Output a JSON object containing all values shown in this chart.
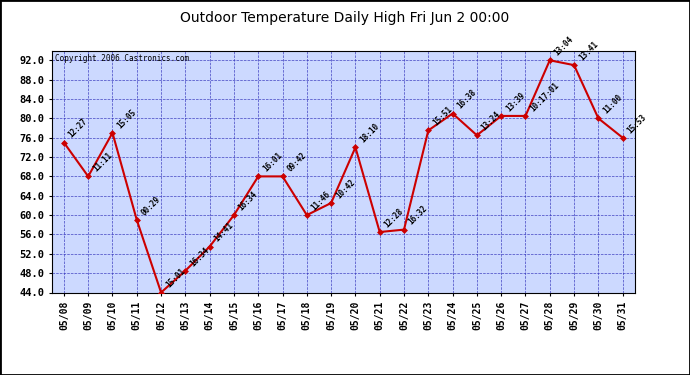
{
  "title": "Outdoor Temperature Daily High Fri Jun 2 00:00",
  "copyright": "Copyright 2006 Castronics.com",
  "dates": [
    "05/08",
    "05/09",
    "05/10",
    "05/11",
    "05/12",
    "05/13",
    "05/14",
    "05/15",
    "05/16",
    "05/17",
    "05/18",
    "05/19",
    "05/20",
    "05/21",
    "05/22",
    "05/23",
    "05/24",
    "05/25",
    "05/26",
    "05/27",
    "05/28",
    "05/29",
    "05/30",
    "05/31"
  ],
  "values": [
    75.0,
    68.0,
    77.0,
    59.0,
    44.0,
    48.5,
    53.5,
    60.0,
    68.0,
    68.0,
    60.0,
    62.5,
    74.0,
    56.5,
    57.0,
    77.5,
    81.0,
    76.5,
    80.5,
    80.5,
    92.0,
    91.0,
    80.0,
    76.0
  ],
  "point_labels": [
    "12:27",
    "11:11",
    "15:05",
    "00:29",
    "15:01",
    "16:34",
    "14:41",
    "16:34",
    "16:01",
    "09:42",
    "11:46",
    "10:42",
    "18:10",
    "12:28",
    "16:32",
    "15:51",
    "16:38",
    "13:24",
    "13:39",
    "10:17:01",
    "13:04",
    "13:41",
    "11:00",
    "15:53"
  ],
  "yticks": [
    44.0,
    48.0,
    52.0,
    56.0,
    60.0,
    64.0,
    68.0,
    72.0,
    76.0,
    80.0,
    84.0,
    88.0,
    92.0
  ],
  "ymin": 44.0,
  "ymax": 94.0,
  "line_color": "#cc0000",
  "bg_color": "#ccd9ff",
  "grid_color": "#3333bb",
  "fig_bg": "#ffffff",
  "border_color": "#000000",
  "title_fontsize": 10,
  "label_fontsize": 5.5,
  "tick_fontsize": 7.5,
  "xtick_fontsize": 7.0
}
